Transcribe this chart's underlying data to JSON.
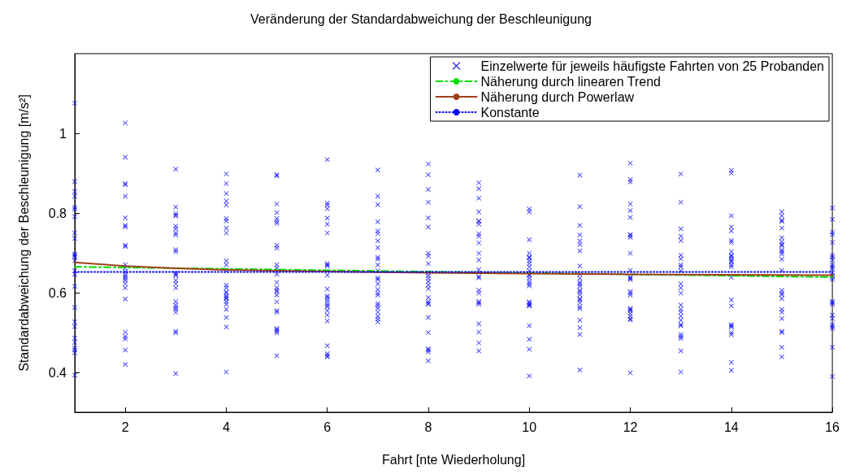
{
  "chart_data": {
    "type": "scatter",
    "title": "Veränderung der Standardabweichung der Beschleunigung",
    "xlabel": "Fahrt [nte Wiederholung]",
    "ylabel": "Standardabweichung der Beschleunigung [m/s²]",
    "xlim": [
      1,
      16
    ],
    "xticks": [
      2,
      4,
      6,
      8,
      10,
      12,
      14,
      16
    ],
    "ylim": [
      0.3,
      1.2
    ],
    "yticks": [
      0.4,
      0.6,
      0.8,
      1
    ],
    "grid": false,
    "legend": "top right",
    "series": [
      {
        "name": "Einzelwerte für jeweils häufigste Fahrten von 25 Probanden",
        "marker": "cross",
        "color": "#0000ff",
        "x": [
          1,
          1,
          1,
          1,
          1,
          1,
          1,
          1,
          1,
          1,
          1,
          1,
          1,
          1,
          1,
          1,
          1,
          1,
          1,
          1,
          1,
          1,
          1,
          1,
          1,
          2,
          2,
          2,
          2,
          2,
          2,
          2,
          2,
          2,
          2,
          2,
          2,
          2,
          2,
          2,
          2,
          2,
          2,
          2,
          2,
          2,
          2,
          2,
          2,
          2,
          3,
          3,
          3,
          3,
          3,
          3,
          3,
          3,
          3,
          3,
          3,
          3,
          3,
          3,
          3,
          3,
          3,
          3,
          3,
          3,
          3,
          3,
          3,
          3,
          3,
          4,
          4,
          4,
          4,
          4,
          4,
          4,
          4,
          4,
          4,
          4,
          4,
          4,
          4,
          4,
          4,
          4,
          4,
          4,
          4,
          4,
          4,
          4,
          4,
          4,
          5,
          5,
          5,
          5,
          5,
          5,
          5,
          5,
          5,
          5,
          5,
          5,
          5,
          5,
          5,
          5,
          5,
          5,
          5,
          5,
          5,
          5,
          5,
          5,
          5,
          6,
          6,
          6,
          6,
          6,
          6,
          6,
          6,
          6,
          6,
          6,
          6,
          6,
          6,
          6,
          6,
          6,
          6,
          6,
          6,
          6,
          6,
          6,
          6,
          6,
          7,
          7,
          7,
          7,
          7,
          7,
          7,
          7,
          7,
          7,
          7,
          7,
          7,
          7,
          7,
          7,
          7,
          7,
          7,
          7,
          7,
          7,
          7,
          7,
          7,
          8,
          8,
          8,
          8,
          8,
          8,
          8,
          8,
          8,
          8,
          8,
          8,
          8,
          8,
          8,
          8,
          8,
          8,
          8,
          8,
          8,
          8,
          8,
          8,
          8,
          9,
          9,
          9,
          9,
          9,
          9,
          9,
          9,
          9,
          9,
          9,
          9,
          9,
          9,
          9,
          9,
          9,
          9,
          9,
          9,
          9,
          9,
          9,
          9,
          10,
          10,
          10,
          10,
          10,
          10,
          10,
          10,
          10,
          10,
          10,
          10,
          10,
          10,
          10,
          10,
          10,
          10,
          10,
          10,
          10,
          10,
          10,
          10,
          10,
          11,
          11,
          11,
          11,
          11,
          11,
          11,
          11,
          11,
          11,
          11,
          11,
          11,
          11,
          11,
          11,
          11,
          11,
          11,
          11,
          11,
          11,
          11,
          11,
          11,
          12,
          12,
          12,
          12,
          12,
          12,
          12,
          12,
          12,
          12,
          12,
          12,
          12,
          12,
          12,
          12,
          12,
          12,
          12,
          12,
          12,
          12,
          12,
          12,
          12,
          13,
          13,
          13,
          13,
          13,
          13,
          13,
          13,
          13,
          13,
          13,
          13,
          13,
          13,
          13,
          13,
          13,
          13,
          13,
          13,
          13,
          13,
          13,
          13,
          13,
          14,
          14,
          14,
          14,
          14,
          14,
          14,
          14,
          14,
          14,
          14,
          14,
          14,
          14,
          14,
          14,
          14,
          14,
          14,
          14,
          14,
          14,
          14,
          14,
          14,
          15,
          15,
          15,
          15,
          15,
          15,
          15,
          15,
          15,
          15,
          15,
          15,
          15,
          15,
          15,
          15,
          15,
          15,
          15,
          15,
          15,
          15,
          15,
          15,
          15,
          16,
          16,
          16,
          16,
          16,
          16,
          16,
          16,
          16,
          16,
          16,
          16,
          16,
          16,
          16,
          16,
          16,
          16,
          16,
          16,
          16,
          16,
          16,
          16,
          16
        ],
        "values": [
          1.076,
          0.879,
          0.854,
          0.842,
          0.814,
          0.809,
          0.791,
          0.75,
          0.736,
          0.697,
          0.694,
          0.69,
          0.68,
          0.655,
          0.646,
          0.616,
          0.563,
          0.527,
          0.515,
          0.486,
          0.475,
          0.461,
          0.456,
          0.449,
          0.393,
          1.026,
          0.94,
          0.874,
          0.871,
          0.842,
          0.788,
          0.769,
          0.765,
          0.719,
          0.716,
          0.67,
          0.662,
          0.653,
          0.646,
          0.641,
          0.636,
          0.631,
          0.623,
          0.612,
          0.584,
          0.501,
          0.49,
          0.484,
          0.456,
          0.42,
          0.91,
          0.815,
          0.799,
          0.794,
          0.793,
          0.767,
          0.76,
          0.75,
          0.745,
          0.708,
          0.703,
          0.65,
          0.646,
          0.643,
          0.631,
          0.623,
          0.612,
          0.578,
          0.569,
          0.563,
          0.558,
          0.551,
          0.503,
          0.499,
          0.397,
          0.898,
          0.874,
          0.849,
          0.83,
          0.82,
          0.786,
          0.78,
          0.762,
          0.75,
          0.68,
          0.67,
          0.655,
          0.619,
          0.612,
          0.602,
          0.599,
          0.592,
          0.588,
          0.585,
          0.578,
          0.571,
          0.558,
          0.538,
          0.514,
          0.401,
          0.896,
          0.893,
          0.823,
          0.801,
          0.786,
          0.779,
          0.774,
          0.719,
          0.712,
          0.67,
          0.662,
          0.646,
          0.626,
          0.612,
          0.606,
          0.602,
          0.594,
          0.577,
          0.555,
          0.551,
          0.51,
          0.507,
          0.503,
          0.499,
          0.442,
          0.934,
          0.825,
          0.82,
          0.811,
          0.787,
          0.772,
          0.75,
          0.673,
          0.67,
          0.667,
          0.644,
          0.609,
          0.592,
          0.588,
          0.582,
          0.575,
          0.569,
          0.565,
          0.555,
          0.544,
          0.529,
          0.467,
          0.447,
          0.442,
          0.439,
          0.908,
          0.842,
          0.821,
          0.778,
          0.755,
          0.748,
          0.73,
          0.713,
          0.689,
          0.684,
          0.67,
          0.655,
          0.637,
          0.633,
          0.622,
          0.608,
          0.599,
          0.594,
          0.573,
          0.568,
          0.561,
          0.551,
          0.541,
          0.534,
          0.527,
          0.923,
          0.896,
          0.859,
          0.827,
          0.788,
          0.765,
          0.699,
          0.692,
          0.673,
          0.65,
          0.643,
          0.636,
          0.628,
          0.619,
          0.61,
          0.588,
          0.578,
          0.573,
          0.571,
          0.538,
          0.5,
          0.459,
          0.456,
          0.451,
          0.429,
          0.876,
          0.861,
          0.837,
          0.803,
          0.78,
          0.779,
          0.772,
          0.748,
          0.742,
          0.725,
          0.699,
          0.682,
          0.658,
          0.641,
          0.637,
          0.606,
          0.599,
          0.578,
          0.575,
          0.571,
          0.522,
          0.501,
          0.474,
          0.454,
          0.81,
          0.803,
          0.733,
          0.699,
          0.69,
          0.687,
          0.68,
          0.673,
          0.665,
          0.655,
          0.646,
          0.643,
          0.636,
          0.628,
          0.622,
          0.617,
          0.577,
          0.575,
          0.571,
          0.568,
          0.567,
          0.517,
          0.483,
          0.458,
          0.391,
          0.895,
          0.816,
          0.769,
          0.745,
          0.73,
          0.721,
          0.705,
          0.667,
          0.646,
          0.636,
          0.626,
          0.622,
          0.616,
          0.606,
          0.602,
          0.595,
          0.585,
          0.582,
          0.575,
          0.565,
          0.56,
          0.531,
          0.512,
          0.495,
          0.406,
          0.925,
          0.884,
          0.878,
          0.823,
          0.806,
          0.789,
          0.746,
          0.744,
          0.739,
          0.699,
          0.656,
          0.639,
          0.636,
          0.633,
          0.603,
          0.599,
          0.594,
          0.56,
          0.558,
          0.555,
          0.548,
          0.541,
          0.534,
          0.532,
          0.399,
          0.898,
          0.827,
          0.76,
          0.742,
          0.731,
          0.694,
          0.685,
          0.67,
          0.665,
          0.655,
          0.622,
          0.612,
          0.599,
          0.569,
          0.558,
          0.551,
          0.541,
          0.531,
          0.52,
          0.517,
          0.495,
          0.49,
          0.485,
          0.454,
          0.401,
          0.907,
          0.9,
          0.793,
          0.765,
          0.755,
          0.731,
          0.726,
          0.703,
          0.694,
          0.691,
          0.685,
          0.68,
          0.677,
          0.67,
          0.665,
          0.639,
          0.582,
          0.567,
          0.52,
          0.517,
          0.514,
          0.5,
          0.495,
          0.425,
          0.405,
          0.803,
          0.793,
          0.782,
          0.779,
          0.762,
          0.738,
          0.728,
          0.721,
          0.718,
          0.707,
          0.703,
          0.697,
          0.684,
          0.656,
          0.606,
          0.599,
          0.595,
          0.585,
          0.558,
          0.551,
          0.535,
          0.503,
          0.5,
          0.463,
          0.439,
          0.813,
          0.784,
          0.752,
          0.746,
          0.726,
          0.694,
          0.689,
          0.682,
          0.67,
          0.665,
          0.66,
          0.65,
          0.644,
          0.639,
          0.633,
          0.578,
          0.575,
          0.571,
          0.544,
          0.535,
          0.52,
          0.515,
          0.51,
          0.463,
          0.39
        ]
      },
      {
        "name": "Näherung durch linearen Trend",
        "type": "line",
        "line_style": "dashed",
        "color": "#00e000",
        "x": [
          1,
          16
        ],
        "values": [
          0.665,
          0.639
        ]
      },
      {
        "name": "Näherung durch Powerlaw",
        "type": "line",
        "line_style": "solid",
        "color": "#a0401a",
        "x": [
          1,
          2,
          3,
          4,
          6,
          8,
          10,
          12,
          16
        ],
        "values": [
          0.676,
          0.667,
          0.661,
          0.657,
          0.653,
          0.65,
          0.648,
          0.646,
          0.644
        ]
      },
      {
        "name": "Konstante",
        "type": "line",
        "line_style": "dotted",
        "color": "#0000ff",
        "x": [
          1,
          16
        ],
        "values": [
          0.652,
          0.652
        ]
      }
    ]
  }
}
